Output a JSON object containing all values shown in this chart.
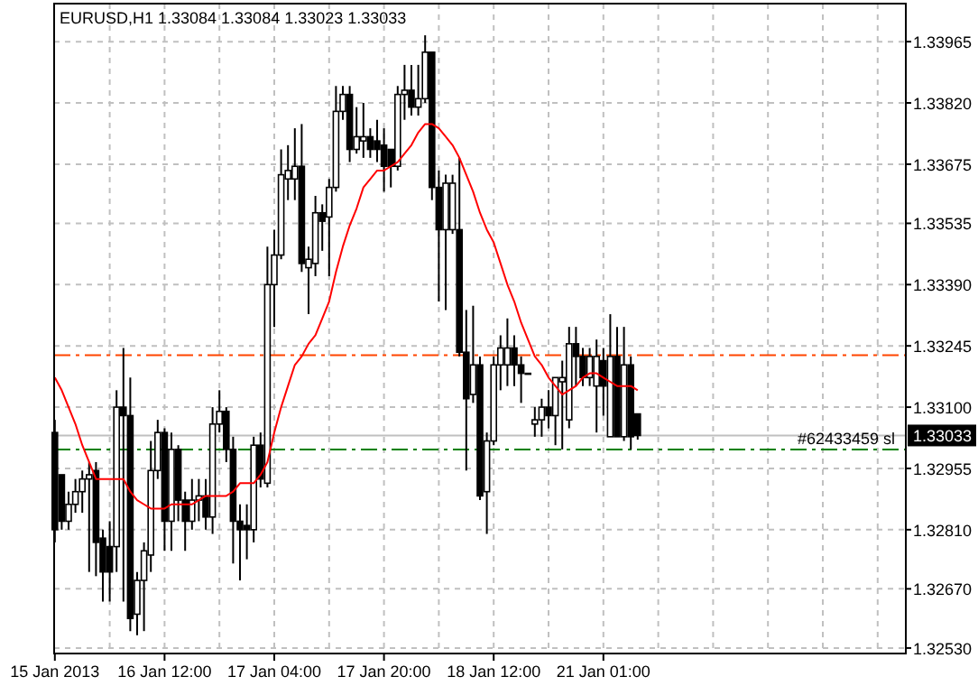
{
  "chart_data": {
    "type": "candlestick",
    "title": "EURUSD,H1  1.33084 1.33084 1.33023 1.33033",
    "color": "#000000",
    "categories": [
      "15 Jan 2013",
      null,
      null,
      null,
      null,
      null,
      null,
      null,
      null,
      null,
      null,
      null,
      null,
      null,
      null,
      null,
      "16 Jan 12:00",
      null,
      null,
      null,
      null,
      null,
      null,
      null,
      null,
      null,
      null,
      null,
      null,
      null,
      null,
      null,
      "17 Jan 04:00",
      null,
      null,
      null,
      null,
      null,
      null,
      null,
      null,
      null,
      null,
      null,
      null,
      null,
      null,
      null,
      "17 Jan 20:00",
      null,
      null,
      null,
      null,
      null,
      null,
      null,
      null,
      null,
      null,
      null,
      null,
      null,
      null,
      null,
      "18 Jan 12:00",
      null,
      null,
      null,
      null,
      null,
      null,
      null,
      null,
      null,
      null,
      null,
      null,
      null,
      null,
      null,
      "21 Jan 01:00",
      null,
      null,
      null,
      null,
      null,
      null,
      null,
      null,
      null,
      null,
      null,
      null,
      null,
      null,
      null,
      null,
      null,
      null,
      null,
      null,
      null,
      null,
      null,
      null,
      null,
      null,
      null,
      null,
      null,
      null,
      null,
      null,
      null,
      null,
      null,
      null,
      null,
      null,
      null,
      null,
      null,
      null,
      null,
      null
    ],
    "ohlc": [
      [
        1.3304,
        1.3307,
        1.3278,
        1.3281
      ],
      [
        1.3294,
        1.3294,
        1.3281,
        1.3283
      ],
      [
        1.3283,
        1.329,
        1.3281,
        1.3287
      ],
      [
        1.3287,
        1.3293,
        1.3285,
        1.329
      ],
      [
        1.329,
        1.3295,
        1.3285,
        1.3293
      ],
      [
        1.3293,
        1.3297,
        1.3271,
        1.3294
      ],
      [
        1.3295,
        1.3297,
        1.327,
        1.3278
      ],
      [
        1.3279,
        1.3281,
        1.3264,
        1.3271
      ],
      [
        1.3277,
        1.3283,
        1.3264,
        1.3271
      ],
      [
        1.3277,
        1.3314,
        1.3271,
        1.331
      ],
      [
        1.331,
        1.3324,
        1.3264,
        1.3308
      ],
      [
        1.3308,
        1.3317,
        1.3257,
        1.326
      ],
      [
        1.3261,
        1.3271,
        1.3256,
        1.3269
      ],
      [
        1.3269,
        1.3278,
        1.3257,
        1.3276
      ],
      [
        1.3275,
        1.3302,
        1.3271,
        1.3295
      ],
      [
        1.3295,
        1.3307,
        1.3293,
        1.3304
      ],
      [
        1.3304,
        1.3305,
        1.3276,
        1.3283
      ],
      [
        1.3283,
        1.3304,
        1.3276,
        1.33
      ],
      [
        1.33,
        1.3301,
        1.3283,
        1.3288
      ],
      [
        1.3288,
        1.329,
        1.3276,
        1.3283
      ],
      [
        1.3283,
        1.3293,
        1.3281,
        1.3288
      ],
      [
        1.3288,
        1.3293,
        1.3283,
        1.3289
      ],
      [
        1.3289,
        1.3293,
        1.3281,
        1.3284
      ],
      [
        1.3284,
        1.331,
        1.328,
        1.3306
      ],
      [
        1.3306,
        1.3314,
        1.3304,
        1.3309
      ],
      [
        1.3309,
        1.331,
        1.3297,
        1.33
      ],
      [
        1.33,
        1.3303,
        1.3273,
        1.3283
      ],
      [
        1.3283,
        1.3287,
        1.3269,
        1.3281
      ],
      [
        1.3282,
        1.3287,
        1.3274,
        1.3281
      ],
      [
        1.3281,
        1.3303,
        1.3278,
        1.3301
      ],
      [
        1.3301,
        1.3304,
        1.3291,
        1.3293
      ],
      [
        1.3292,
        1.3348,
        1.3291,
        1.3339
      ],
      [
        1.3339,
        1.3352,
        1.3329,
        1.3346
      ],
      [
        1.3346,
        1.3371,
        1.3345,
        1.3365
      ],
      [
        1.3364,
        1.3372,
        1.3359,
        1.3366
      ],
      [
        1.3364,
        1.3376,
        1.3359,
        1.3367
      ],
      [
        1.3367,
        1.3377,
        1.3342,
        1.3344
      ],
      [
        1.3343,
        1.3348,
        1.3332,
        1.3345
      ],
      [
        1.3344,
        1.336,
        1.3341,
        1.3356
      ],
      [
        1.3356,
        1.3358,
        1.3347,
        1.3354
      ],
      [
        1.3355,
        1.3364,
        1.3341,
        1.3362
      ],
      [
        1.3362,
        1.3386,
        1.3361,
        1.338
      ],
      [
        1.338,
        1.3386,
        1.3378,
        1.3384
      ],
      [
        1.3384,
        1.3386,
        1.3368,
        1.3371
      ],
      [
        1.3371,
        1.3381,
        1.337,
        1.3374
      ],
      [
        1.3373,
        1.3382,
        1.3369,
        1.3374
      ],
      [
        1.3374,
        1.3376,
        1.3369,
        1.3371
      ],
      [
        1.3373,
        1.3378,
        1.3368,
        1.3371
      ],
      [
        1.3372,
        1.3376,
        1.3361,
        1.3367
      ],
      [
        1.3371,
        1.3371,
        1.3362,
        1.3367
      ],
      [
        1.3367,
        1.3386,
        1.3366,
        1.3384
      ],
      [
        1.3384,
        1.3391,
        1.3378,
        1.3385
      ],
      [
        1.3385,
        1.3391,
        1.3379,
        1.3381
      ],
      [
        1.3381,
        1.3391,
        1.3379,
        1.3383
      ],
      [
        1.3383,
        1.3398,
        1.3382,
        1.3394
      ],
      [
        1.3394,
        1.3394,
        1.3359,
        1.3362
      ],
      [
        1.3362,
        1.3366,
        1.3335,
        1.3352
      ],
      [
        1.3352,
        1.3365,
        1.3333,
        1.3363
      ],
      [
        1.3352,
        1.3365,
        1.3351,
        1.3363
      ],
      [
        1.3352,
        1.3369,
        1.3322,
        1.3323
      ],
      [
        1.3323,
        1.3333,
        1.3295,
        1.3312
      ],
      [
        1.3313,
        1.3334,
        1.3311,
        1.332
      ],
      [
        1.332,
        1.3322,
        1.3288,
        1.3289
      ],
      [
        1.329,
        1.3304,
        1.328,
        1.3302
      ],
      [
        1.3302,
        1.3322,
        1.3301,
        1.332
      ],
      [
        1.332,
        1.3327,
        1.3314,
        1.3324
      ],
      [
        1.332,
        1.3331,
        1.3315,
        1.3324
      ],
      [
        1.3324,
        1.3327,
        1.3315,
        1.332
      ],
      [
        1.332,
        1.3322,
        1.3311,
        1.3318
      ],
      [
        1.3318,
        1.3318,
        1.3318,
        1.3318
      ],
      [
        1.3306,
        1.331,
        1.3303,
        1.3307
      ],
      [
        1.3307,
        1.3312,
        1.3303,
        1.331
      ],
      [
        1.331,
        1.3314,
        1.3305,
        1.3308
      ],
      [
        1.3308,
        1.3317,
        1.3301,
        1.3317
      ],
      [
        1.3316,
        1.3321,
        1.33,
        1.3317
      ],
      [
        1.3307,
        1.3329,
        1.3305,
        1.3325
      ],
      [
        1.3325,
        1.3329,
        1.3315,
        1.3322
      ],
      [
        1.3322,
        1.3324,
        1.3315,
        1.3317
      ],
      [
        1.3317,
        1.3324,
        1.3315,
        1.3322
      ],
      [
        1.3315,
        1.3326,
        1.3304,
        1.3322
      ],
      [
        1.3321,
        1.3324,
        1.3308,
        1.3315
      ],
      [
        1.3303,
        1.3332,
        1.3303,
        1.3322
      ],
      [
        1.3322,
        1.3329,
        1.3303,
        1.3303
      ],
      [
        1.3303,
        1.3329,
        1.3302,
        1.332
      ],
      [
        1.332,
        1.3322,
        1.33,
        1.3303
      ],
      [
        1.33084,
        1.33084,
        1.33023,
        1.33033
      ],
      null,
      null,
      null,
      null,
      null,
      null,
      null,
      null,
      null,
      null,
      null,
      null,
      null,
      null,
      null,
      null,
      null,
      null,
      null,
      null,
      null,
      null,
      null,
      null,
      null,
      null,
      null,
      null,
      null,
      null,
      null,
      null,
      null,
      null,
      null,
      null,
      null,
      null,
      null
    ],
    "series": [
      {
        "type": "line",
        "color": "#ff0000",
        "values": [
          1.3317,
          1.3314,
          1.331,
          1.3306,
          1.3301,
          1.3297,
          1.3293,
          1.3293,
          1.3293,
          1.3293,
          1.3293,
          1.329,
          1.3288,
          1.3287,
          1.3286,
          1.3286,
          1.3286,
          1.3287,
          1.3287,
          1.3287,
          1.3287,
          1.3288,
          1.3289,
          1.3289,
          1.3289,
          1.3289,
          1.329,
          1.3292,
          1.3292,
          1.3292,
          1.3294,
          1.3297,
          1.3304,
          1.331,
          1.3315,
          1.332,
          1.3322,
          1.3325,
          1.3327,
          1.3331,
          1.3335,
          1.3342,
          1.3348,
          1.3353,
          1.3357,
          1.3362,
          1.3364,
          1.3366,
          1.3366,
          1.3367,
          1.3368,
          1.337,
          1.3372,
          1.3375,
          1.3377,
          1.3377,
          1.3376,
          1.3374,
          1.3372,
          1.3369,
          1.3365,
          1.3361,
          1.3356,
          1.3352,
          1.3349,
          1.3344,
          1.3339,
          1.3335,
          1.333,
          1.3326,
          1.3322,
          1.332,
          1.3317,
          1.3315,
          1.3313,
          1.3314,
          1.3315,
          1.3317,
          1.3318,
          1.3318,
          1.3317,
          1.3316,
          1.3315,
          1.3315,
          1.3315,
          1.3314,
          null,
          null,
          null,
          null,
          null,
          null,
          null,
          null,
          null,
          null,
          null,
          null,
          null,
          null,
          null,
          null,
          null,
          null,
          null,
          null,
          null,
          null,
          null,
          null,
          null,
          null,
          null,
          null,
          null,
          null,
          null,
          null,
          null,
          null,
          null,
          null,
          null,
          null,
          null
        ]
      }
    ],
    "ylim": [
      1.32517,
      1.34055
    ],
    "yticks": [
      {
        "value": 1.33965,
        "label": "1.33965"
      },
      {
        "value": 1.3382,
        "label": "1.33820"
      },
      {
        "value": 1.33675,
        "label": "1.33675"
      },
      {
        "value": 1.33535,
        "label": "1.33535"
      },
      {
        "value": 1.3339,
        "label": "1.33390"
      },
      {
        "value": 1.33245,
        "label": "1.33245"
      },
      {
        "value": 1.331,
        "label": "1.33100"
      },
      {
        "value": 1.32955,
        "label": "1.32955"
      },
      {
        "value": 1.3281,
        "label": "1.32810"
      },
      {
        "value": 1.3267,
        "label": "1.32670"
      },
      {
        "value": 1.3253,
        "label": "1.32530"
      }
    ],
    "ref_lines": [
      {
        "axis": "y",
        "value": 1.33223,
        "color": "#ff4500",
        "line_style": "dashed"
      },
      {
        "axis": "y",
        "value": 1.33,
        "label": "#62433459 sl",
        "color": "#008000",
        "line_style": "dashed"
      },
      {
        "axis": "y",
        "value": 1.33033,
        "label": "1.33033",
        "color": "#c0c0c0",
        "line_style": "solid"
      }
    ],
    "grid": true
  }
}
